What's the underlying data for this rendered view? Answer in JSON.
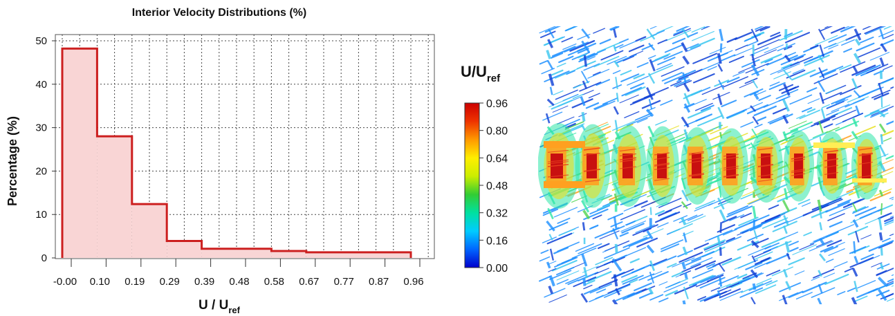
{
  "chart_data": [
    {
      "type": "histogram",
      "title": "Interior Velocity Distributions  (%)",
      "xlabel": "U / U",
      "xlabel_sub": "ref",
      "ylabel": "Percentage (%)",
      "ylim": [
        0,
        50
      ],
      "yticks": [
        "0",
        "10",
        "20",
        "30",
        "40",
        "50"
      ],
      "xticks": [
        "-0.00",
        "0.10",
        "0.19",
        "0.29",
        "0.39",
        "0.48",
        "0.58",
        "0.67",
        "0.77",
        "0.87",
        "0.96"
      ],
      "bins": [
        {
          "from": 0.0,
          "to": 0.096,
          "value": 48.2
        },
        {
          "from": 0.096,
          "to": 0.192,
          "value": 28.0
        },
        {
          "from": 0.192,
          "to": 0.288,
          "value": 12.4
        },
        {
          "from": 0.288,
          "to": 0.384,
          "value": 3.9
        },
        {
          "from": 0.384,
          "to": 0.576,
          "value": 2.1
        },
        {
          "from": 0.576,
          "to": 0.672,
          "value": 1.6
        },
        {
          "from": 0.672,
          "to": 0.96,
          "value": 1.3
        }
      ],
      "xlim": [
        -0.01,
        0.96
      ],
      "grid": true,
      "fill_color": "#f9d5d5",
      "line_color": "#cc1f1f"
    },
    {
      "type": "colorbar",
      "title": "U/U",
      "title_sub": "ref",
      "ticks": [
        "0.96",
        "0.80",
        "0.64",
        "0.48",
        "0.32",
        "0.16",
        "0.00"
      ],
      "range": [
        0.0,
        0.96
      ],
      "colormap": [
        "#0000cc",
        "#0066ff",
        "#00ccff",
        "#00e0a0",
        "#33cc33",
        "#ccee00",
        "#ffee00",
        "#ff9900",
        "#ee3300",
        "#cc0000"
      ]
    }
  ],
  "render": {
    "label": "3D velocity vector field rendering",
    "colors": [
      "#0d3fd6",
      "#1e90ff",
      "#3cc8f0",
      "#2ee6a8",
      "#4fd44f",
      "#e8e020",
      "#ffa020",
      "#e8401e",
      "#c81010"
    ]
  }
}
